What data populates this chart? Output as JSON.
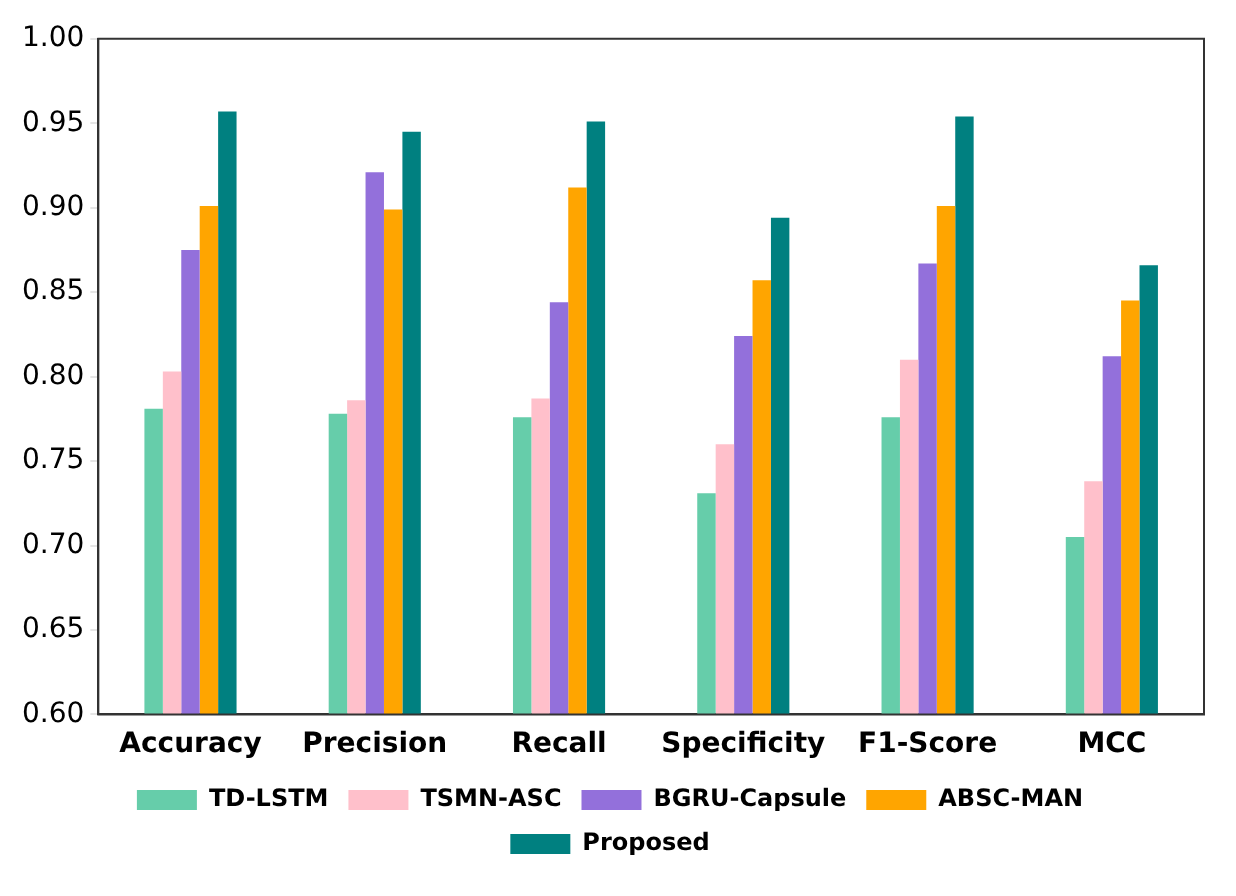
{
  "chart_data": {
    "type": "bar",
    "categories": [
      "Accuracy",
      "Precision",
      "Recall",
      "Specificity",
      "F1-Score",
      "MCC"
    ],
    "series": [
      {
        "name": "TD-LSTM",
        "color": "#66cdaa",
        "values": [
          0.781,
          0.778,
          0.776,
          0.731,
          0.776,
          0.705
        ]
      },
      {
        "name": "TSMN-ASC",
        "color": "#ffc0cb",
        "values": [
          0.803,
          0.786,
          0.787,
          0.76,
          0.81,
          0.738
        ]
      },
      {
        "name": "BGRU-Capsule",
        "color": "#9370db",
        "values": [
          0.875,
          0.921,
          0.844,
          0.824,
          0.867,
          0.812
        ]
      },
      {
        "name": "ABSC-MAN",
        "color": "#ffa500",
        "values": [
          0.901,
          0.899,
          0.912,
          0.857,
          0.901,
          0.845
        ]
      },
      {
        "name": "Proposed",
        "color": "#008080",
        "values": [
          0.957,
          0.945,
          0.951,
          0.894,
          0.954,
          0.866
        ]
      }
    ],
    "ylim": [
      0.6,
      1.0
    ],
    "yticks": [
      {
        "value": 0.6,
        "label": "0.60"
      },
      {
        "value": 0.65,
        "label": "0.65"
      },
      {
        "value": 0.7,
        "label": "0.70"
      },
      {
        "value": 0.75,
        "label": "0.75"
      },
      {
        "value": 0.8,
        "label": "0.80"
      },
      {
        "value": 0.85,
        "label": "0.85"
      },
      {
        "value": 0.9,
        "label": "0.90"
      },
      {
        "value": 0.95,
        "label": "0.95"
      },
      {
        "value": 1.0,
        "label": "1.00"
      }
    ],
    "grid": false,
    "legend": "bottom"
  }
}
